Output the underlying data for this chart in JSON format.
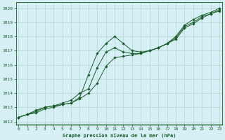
{
  "title": "Graphe pression niveau de la mer (hPa)",
  "bg_color": "#d6eff5",
  "plot_bg": "#d6eff5",
  "grid_color": "#b0d8cc",
  "line_color": "#1a5c2a",
  "marker_color": "#1a5c2a",
  "xlim": [
    -0.3,
    23.3
  ],
  "ylim": [
    1011.8,
    1020.4
  ],
  "yticks": [
    1012,
    1013,
    1014,
    1015,
    1016,
    1017,
    1018,
    1019,
    1020
  ],
  "xticks": [
    0,
    1,
    2,
    3,
    4,
    5,
    6,
    7,
    8,
    9,
    10,
    11,
    12,
    13,
    14,
    15,
    16,
    17,
    18,
    19,
    20,
    21,
    22,
    23
  ],
  "series": [
    [
      1012.3,
      1012.5,
      1012.7,
      1013.0,
      1013.1,
      1013.2,
      1013.3,
      1013.7,
      1015.3,
      1016.8,
      1017.5,
      1018.0,
      1017.5,
      1017.0,
      1016.9,
      1017.0,
      1017.2,
      1017.5,
      1018.0,
      1018.8,
      1019.2,
      1019.5,
      1019.7,
      1020.0
    ],
    [
      1012.3,
      1012.5,
      1012.8,
      1013.0,
      1013.1,
      1013.3,
      1013.5,
      1014.0,
      1014.3,
      1015.8,
      1016.9,
      1017.2,
      1016.9,
      1016.8,
      1016.8,
      1017.0,
      1017.2,
      1017.5,
      1017.9,
      1018.7,
      1019.0,
      1019.4,
      1019.6,
      1019.9
    ],
    [
      1012.3,
      1012.5,
      1012.6,
      1012.9,
      1013.0,
      1013.2,
      1013.3,
      1013.6,
      1014.0,
      1014.7,
      1015.9,
      1016.5,
      1016.6,
      1016.7,
      1016.8,
      1017.0,
      1017.2,
      1017.5,
      1017.8,
      1018.6,
      1018.9,
      1019.3,
      1019.6,
      1019.8
    ]
  ]
}
